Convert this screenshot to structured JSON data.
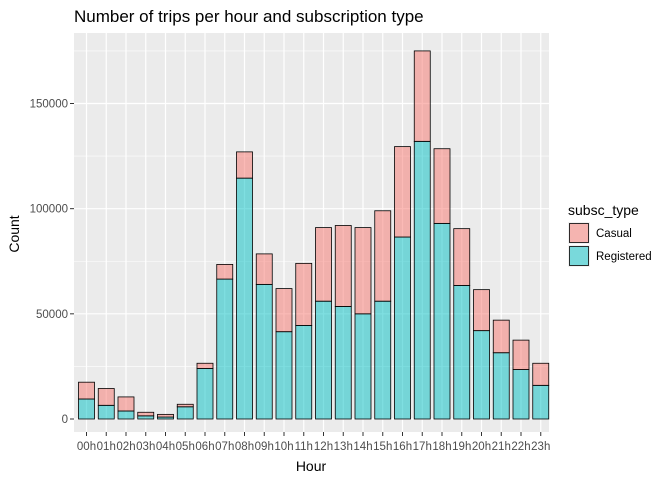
{
  "chart_data": {
    "type": "bar",
    "stacked": true,
    "title": "Number of trips per hour and subscription type",
    "xlabel": "Hour",
    "ylabel": "Count",
    "ylim": [
      0,
      180000
    ],
    "y_ticks": [
      0,
      50000,
      100000,
      150000
    ],
    "y_tick_labels": [
      "0",
      "50000",
      "100000",
      "150000"
    ],
    "grid": true,
    "legend_position": "right",
    "legend_title": "subsc_type",
    "categories": [
      "00h",
      "01h",
      "02h",
      "03h",
      "04h",
      "05h",
      "06h",
      "07h",
      "08h",
      "09h",
      "10h",
      "11h",
      "12h",
      "13h",
      "14h",
      "15h",
      "16h",
      "17h",
      "18h",
      "19h",
      "20h",
      "21h",
      "22h",
      "23h"
    ],
    "series": [
      {
        "name": "Registered",
        "color": "#00BFC4",
        "values": [
          9500,
          6500,
          3800,
          1500,
          900,
          5800,
          24000,
          66500,
          114500,
          64000,
          41500,
          44500,
          56000,
          53500,
          50000,
          56000,
          86500,
          132000,
          93000,
          63500,
          42000,
          31500,
          23500,
          16000
        ]
      },
      {
        "name": "Casual",
        "color": "#F8766D",
        "values": [
          8000,
          8000,
          6700,
          1700,
          1300,
          1200,
          2500,
          7000,
          12500,
          14500,
          20500,
          29500,
          35000,
          38500,
          41000,
          43000,
          43000,
          43000,
          35500,
          27000,
          19500,
          15500,
          14000,
          10500
        ]
      }
    ]
  },
  "colors": {
    "panel_background": "#EBEBEB",
    "grid_major": "#FFFFFF",
    "bar_outline": "#000000"
  }
}
